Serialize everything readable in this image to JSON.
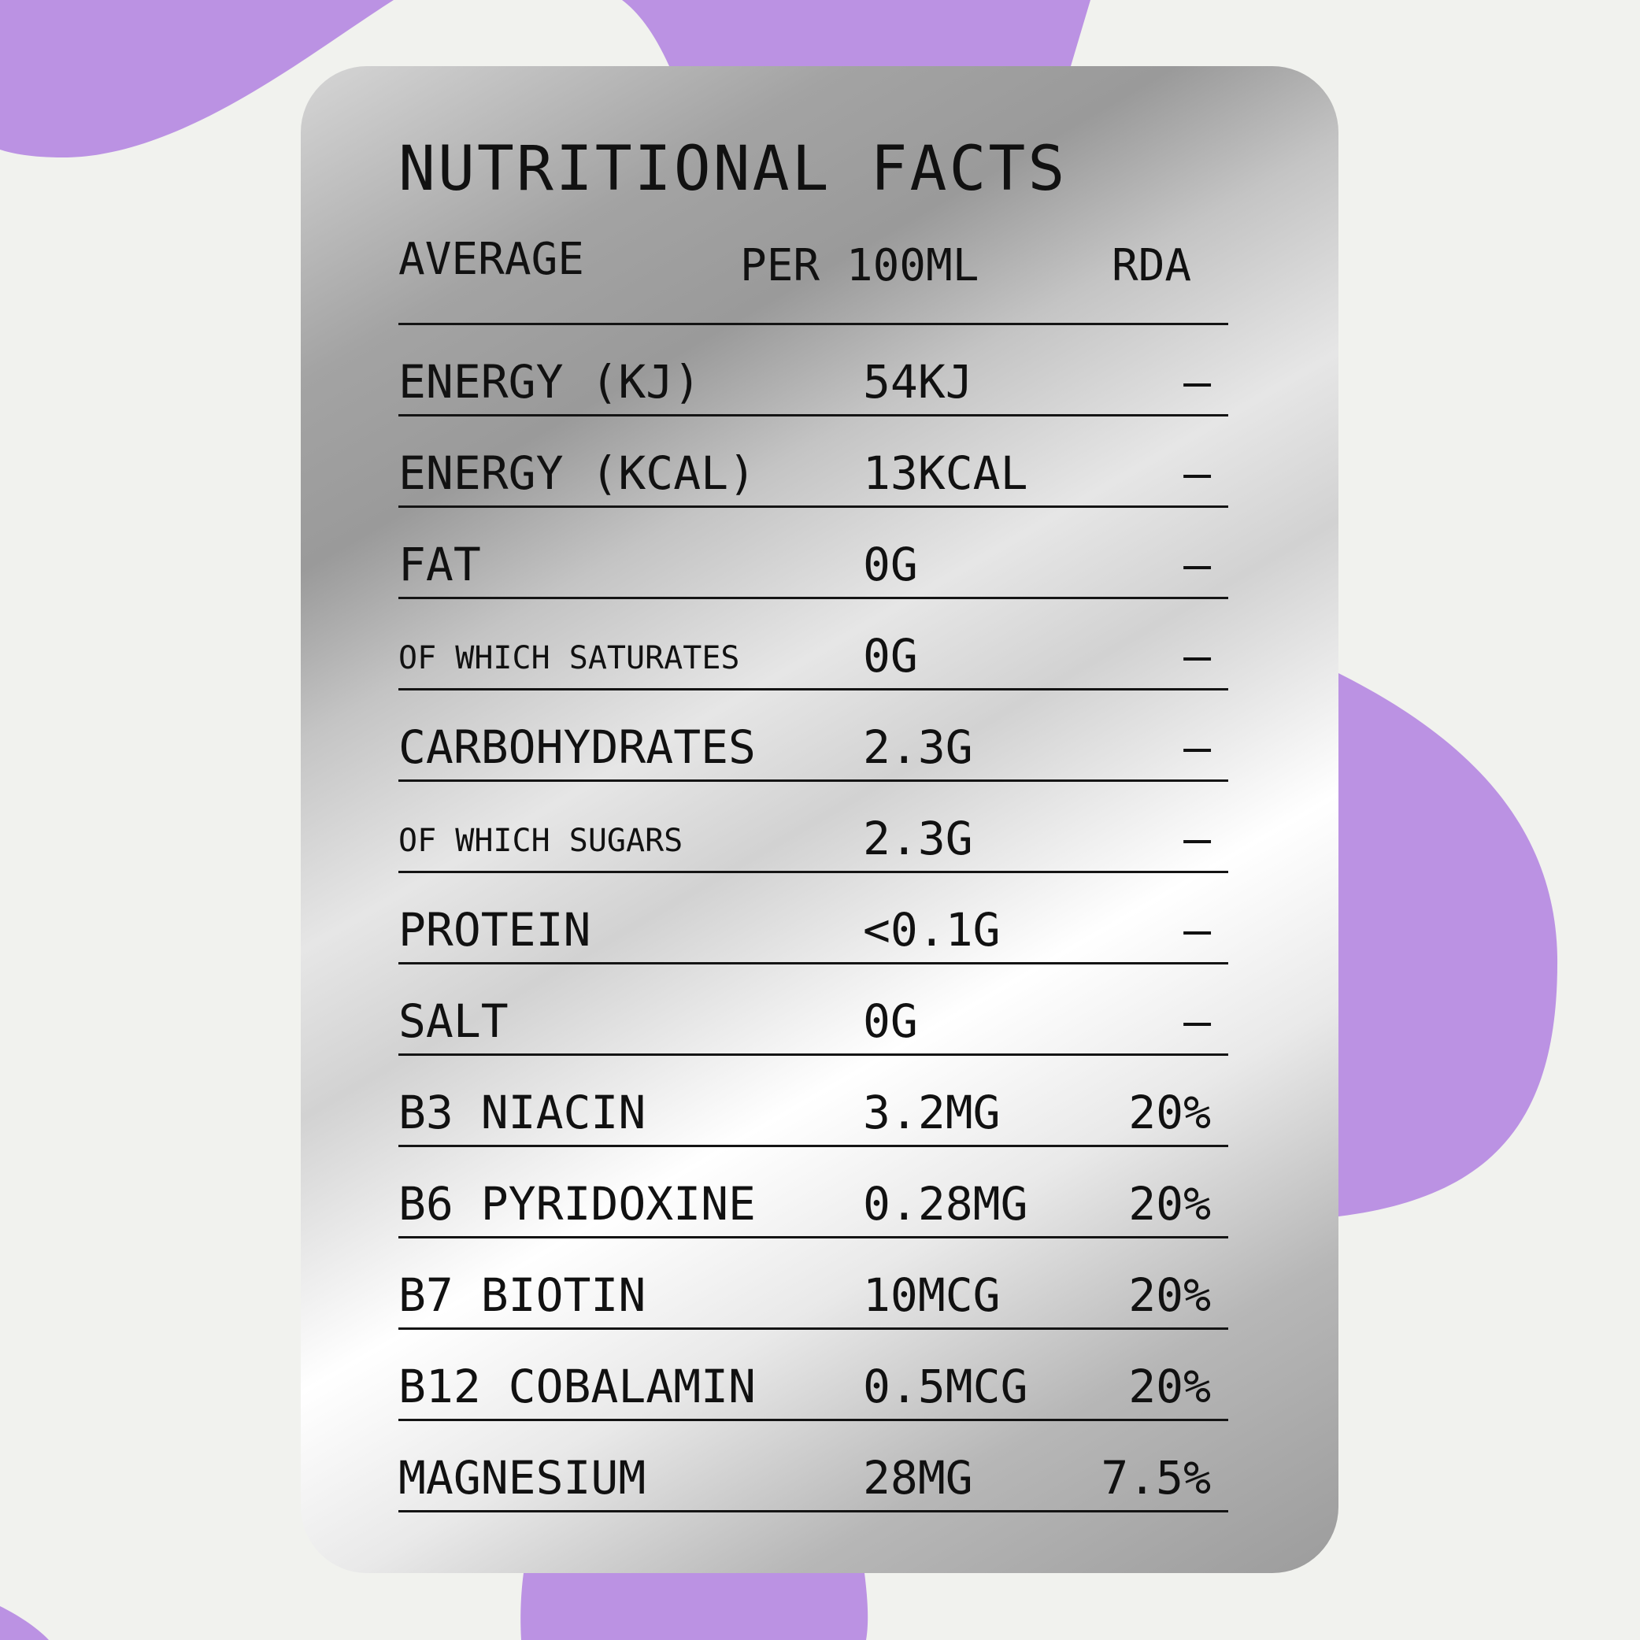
{
  "colors": {
    "background": "#f1f2ee",
    "accent_blob": "#bb92e3",
    "text": "#111111"
  },
  "panel": {
    "title": "NUTRITIONAL FACTS",
    "headers": {
      "average": "AVERAGE",
      "per": "PER 100ML",
      "rda": "RDA"
    },
    "rows": [
      {
        "name": "ENERGY (KJ)",
        "value": "54KJ",
        "rda": "—"
      },
      {
        "name": "ENERGY (KCAL)",
        "value": "13KCAL",
        "rda": "—"
      },
      {
        "name": "FAT",
        "value": "0G",
        "rda": "—"
      },
      {
        "name": "OF WHICH SATURATES",
        "value": "0G",
        "rda": "—"
      },
      {
        "name": "CARBOHYDRATES",
        "value": "2.3G",
        "rda": "—"
      },
      {
        "name": "OF WHICH SUGARS",
        "value": "2.3G",
        "rda": "—"
      },
      {
        "name": "PROTEIN",
        "value": "<0.1G",
        "rda": "—"
      },
      {
        "name": "SALT",
        "value": "0G",
        "rda": "—"
      },
      {
        "name": "B3 NIACIN",
        "value": "3.2MG",
        "rda": "20%"
      },
      {
        "name": "B6 PYRIDOXINE",
        "value": "0.28MG",
        "rda": "20%"
      },
      {
        "name": "B7 BIOTIN",
        "value": "10MCG",
        "rda": "20%"
      },
      {
        "name": "B12 COBALAMIN",
        "value": "0.5MCG",
        "rda": "20%"
      },
      {
        "name": "MAGNESIUM",
        "value": "28MG",
        "rda": "7.5%"
      }
    ]
  }
}
